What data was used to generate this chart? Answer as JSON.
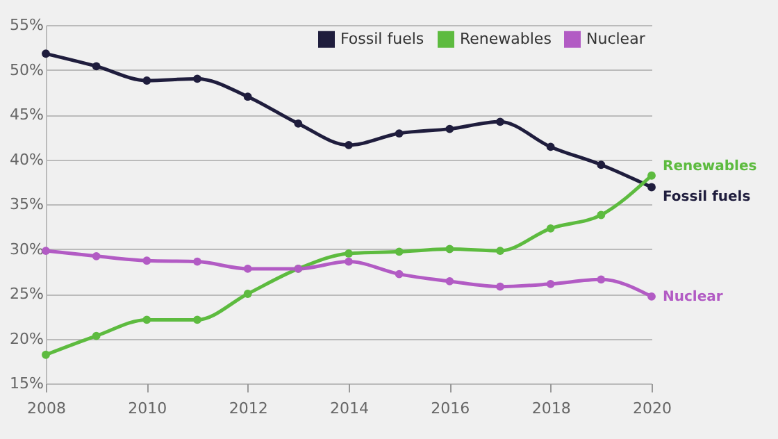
{
  "chart_data": {
    "type": "line",
    "x": [
      2008,
      2009,
      2010,
      2011,
      2012,
      2013,
      2014,
      2015,
      2016,
      2017,
      2018,
      2019,
      2020
    ],
    "series": [
      {
        "name": "Fossil fuels",
        "color": "#1f1d3d",
        "values": [
          51.8,
          50.4,
          48.8,
          49.0,
          47.0,
          44.0,
          41.6,
          42.9,
          43.4,
          44.2,
          41.4,
          39.4,
          36.9
        ]
      },
      {
        "name": "Renewables",
        "color": "#5dbb3f",
        "values": [
          18.2,
          20.3,
          22.1,
          22.1,
          25.0,
          27.8,
          29.5,
          29.7,
          30.0,
          29.8,
          32.3,
          33.8,
          38.2
        ]
      },
      {
        "name": "Nuclear",
        "color": "#b25bc4",
        "values": [
          29.8,
          29.2,
          28.7,
          28.6,
          27.8,
          27.8,
          28.6,
          27.2,
          26.4,
          25.8,
          26.1,
          26.6,
          24.7
        ]
      }
    ],
    "xlim": [
      2008,
      2020
    ],
    "xticks": [
      2008,
      2010,
      2012,
      2014,
      2016,
      2018,
      2020
    ],
    "ylim": [
      15,
      55
    ],
    "yticks": [
      {
        "value": 15,
        "label": "15%"
      },
      {
        "value": 20,
        "label": "20%"
      },
      {
        "value": 25,
        "label": "25%"
      },
      {
        "value": 30,
        "label": "30%"
      },
      {
        "value": 35,
        "label": "35%"
      },
      {
        "value": 40,
        "label": "40%"
      },
      {
        "value": 45,
        "label": "45%"
      },
      {
        "value": 50,
        "label": "50%"
      },
      {
        "value": 55,
        "label": "55%"
      }
    ],
    "grid": "y",
    "legend": "top right",
    "marker": "circle",
    "line_style": "solid"
  }
}
